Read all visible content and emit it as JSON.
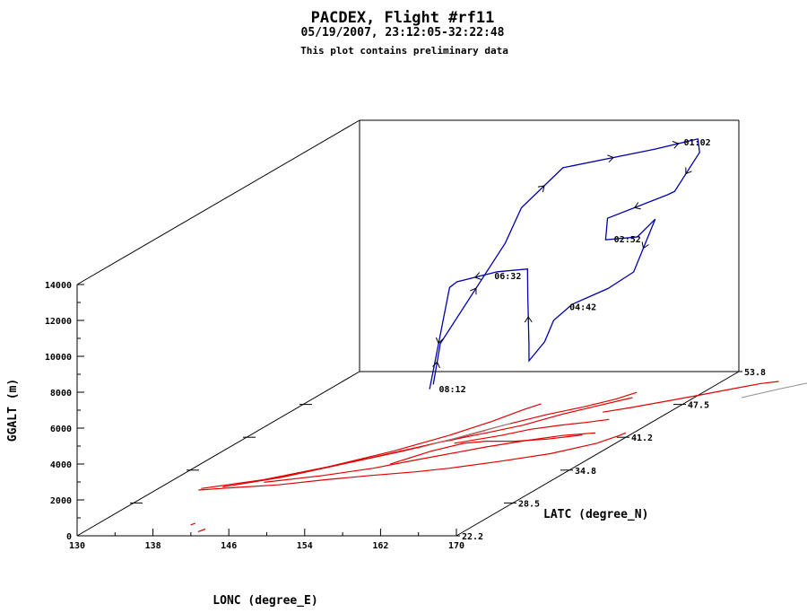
{
  "chart_data": {
    "type": "line",
    "projection": "3d",
    "title": "PACDEX, Flight #rf11",
    "subtitle": "05/19/2007, 23:12:05-32:22:48",
    "note": "This plot contains preliminary data",
    "xlabel": "LONC (degree_E)",
    "ylabel": "LATC (degree_N)",
    "zlabel": "GGALT (m)",
    "xlim": [
      130,
      170
    ],
    "ylim": [
      22.2,
      53.8
    ],
    "zlim": [
      0,
      14000
    ],
    "x_ticks": [
      "130",
      "138",
      "146",
      "154",
      "162",
      "170"
    ],
    "y_ticks": [
      "22.2",
      "28.5",
      "34.8",
      "41.2",
      "47.5",
      "53.8"
    ],
    "z_ticks": [
      "0",
      "2000",
      "4000",
      "6000",
      "8000",
      "10000",
      "12000",
      "14000"
    ],
    "series": [
      {
        "color": "#0000aa",
        "path": [
          [
            153.8,
            36.8,
            4200
          ],
          [
            153.6,
            37.8,
            6200
          ],
          [
            154.6,
            44.0,
            10000
          ],
          [
            154.8,
            45.6,
            11500
          ],
          [
            155.5,
            49.5,
            12600
          ],
          [
            161.5,
            53.4,
            12500
          ],
          [
            165.5,
            54.0,
            12900
          ],
          [
            166.8,
            52.8,
            12500
          ],
          [
            167.0,
            49.8,
            11200
          ],
          [
            167.2,
            48.8,
            11300
          ],
          [
            163.5,
            46.0,
            10800
          ],
          [
            163.3,
            46.0,
            9600
          ],
          [
            165.8,
            46.9,
            9500
          ],
          [
            167.4,
            47.2,
            10400
          ],
          [
            167.2,
            45.0,
            8100
          ],
          [
            166.2,
            43.2,
            7700
          ],
          [
            164.0,
            41.5,
            7300
          ],
          [
            163.0,
            40.5,
            6700
          ],
          [
            163.0,
            39.5,
            5800
          ],
          [
            162.2,
            38.6,
            5000
          ],
          [
            162.0,
            38.8,
            5900
          ],
          [
            161.5,
            39.2,
            8500
          ],
          [
            161.0,
            39.7,
            9800
          ],
          [
            158.0,
            39.5,
            9700
          ],
          [
            154.6,
            38.6,
            9400
          ],
          [
            154.2,
            38.2,
            9200
          ],
          [
            153.6,
            36.6,
            4000
          ]
        ]
      }
    ],
    "time_labels": [
      {
        "text": "01:02",
        "at": [
          164.0,
          53.8,
          12800
        ]
      },
      {
        "text": "02:52",
        "at": [
          163.8,
          46.2,
          9600
        ]
      },
      {
        "text": "06:32",
        "at": [
          157.5,
          39.5,
          9500
        ]
      },
      {
        "text": "04:42",
        "at": [
          164.2,
          40.8,
          7400
        ]
      },
      {
        "text": "08:12",
        "at": [
          154.3,
          36.7,
          4000
        ]
      }
    ],
    "ground_track": {
      "color": "#e00000",
      "segments": [
        [
          [
            134.5,
            31.0
          ],
          [
            138.0,
            31.5
          ],
          [
            142.0,
            32.0
          ],
          [
            146.0,
            33.0
          ],
          [
            150.0,
            33.8
          ],
          [
            154.0,
            34.5
          ],
          [
            157.0,
            35.2
          ],
          [
            161.0,
            36.5
          ],
          [
            165.0,
            38.0
          ],
          [
            168.0,
            40.0
          ],
          [
            169.0,
            41.5
          ],
          [
            169.2,
            42.0
          ]
        ],
        [
          [
            134.5,
            31.3
          ],
          [
            139.5,
            33.0
          ],
          [
            144.0,
            35.5
          ],
          [
            148.0,
            38.5
          ],
          [
            151.0,
            41.5
          ],
          [
            153.0,
            44.2
          ],
          [
            154.2,
            46.5
          ],
          [
            155.0,
            47.6
          ]
        ],
        [
          [
            136.5,
            31.6
          ],
          [
            141.0,
            33.5
          ],
          [
            145.0,
            36.0
          ],
          [
            149.0,
            38.5
          ],
          [
            152.0,
            40.8
          ],
          [
            155.0,
            43.5
          ],
          [
            157.5,
            45.5
          ],
          [
            160.0,
            47.0
          ],
          [
            162.0,
            48.5
          ],
          [
            163.0,
            49.8
          ]
        ],
        [
          [
            144.0,
            35.5
          ],
          [
            146.5,
            37.0
          ],
          [
            149.5,
            39.0
          ],
          [
            151.0,
            40.0
          ],
          [
            154.5,
            42.0
          ],
          [
            157.0,
            43.5
          ],
          [
            159.0,
            45.5
          ],
          [
            161.0,
            47.0
          ],
          [
            163.5,
            48.8
          ]
        ],
        [
          [
            140.0,
            32.5
          ],
          [
            145.0,
            33.8
          ],
          [
            149.0,
            35.2
          ],
          [
            152.0,
            36.8
          ],
          [
            155.0,
            38.3
          ],
          [
            157.0,
            39.3
          ],
          [
            160.0,
            40.5
          ],
          [
            163.0,
            41.5
          ],
          [
            166.0,
            42.0
          ]
        ],
        [
          [
            150.0,
            36.0
          ],
          [
            152.0,
            38.5
          ],
          [
            154.0,
            40.0
          ],
          [
            156.0,
            40.4
          ],
          [
            159.0,
            40.4
          ],
          [
            162.0,
            40.8
          ],
          [
            165.0,
            41.6
          ]
        ],
        [
          [
            153.0,
            40.0
          ],
          [
            156.5,
            41.5
          ],
          [
            158.5,
            42.7
          ],
          [
            161.0,
            43.5
          ],
          [
            163.0,
            44.0
          ],
          [
            165.0,
            44.6
          ]
        ],
        [
          [
            163.0,
            46.0
          ],
          [
            165.0,
            46.8
          ],
          [
            167.5,
            48.0
          ],
          [
            170.0,
            49.2
          ],
          [
            172.5,
            50.5
          ],
          [
            174.5,
            51.5
          ],
          [
            176.0,
            51.9
          ]
        ],
        [
          [
            152.0,
            40.5
          ],
          [
            153.0,
            41.5
          ],
          [
            154.0,
            42.5
          ]
        ],
        [
          [
            142.0,
            23.0
          ],
          [
            142.3,
            23.5
          ]
        ],
        [
          [
            140.0,
            24.3
          ],
          [
            140.2,
            24.6
          ]
        ]
      ]
    },
    "gray_track": {
      "color": "#909090",
      "segments": [
        [
          [
            150.0,
            39.0
          ],
          [
            152.0,
            40.8
          ],
          [
            154.0,
            42.5
          ],
          [
            155.3,
            43.8
          ]
        ],
        [
          [
            175.0,
            48.8
          ],
          [
            177.5,
            50.5
          ],
          [
            180.0,
            52.0
          ],
          [
            182.5,
            53.5
          ]
        ]
      ]
    }
  }
}
